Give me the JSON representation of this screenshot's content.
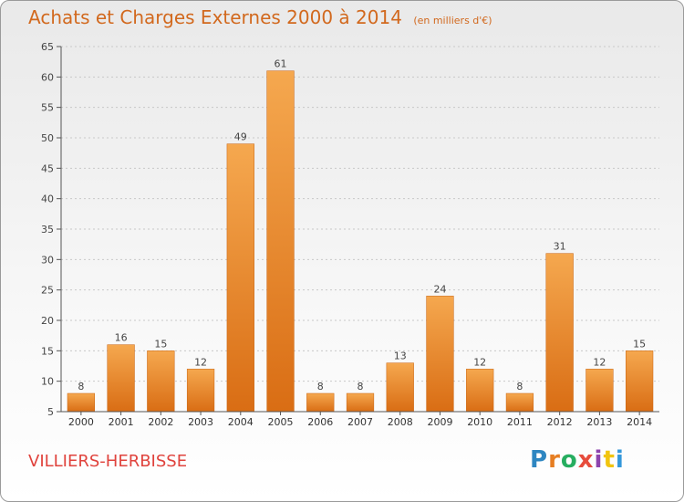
{
  "header": {
    "title": "Achats et Charges Externes 2000 à 2014",
    "unit": "(en milliers d'€)"
  },
  "footer": {
    "commune": "VILLIERS-HERBISSE",
    "logo_text": "Proxiti",
    "logo_colors": [
      "#2e86c1",
      "#e67e22",
      "#27ae60",
      "#e74c3c",
      "#8e44ad",
      "#f1c40f",
      "#3498db"
    ]
  },
  "chart_data": {
    "type": "bar",
    "title": "Achats et Charges Externes 2000 à 2014",
    "subtitle": "(en milliers d'€)",
    "categories": [
      "2000",
      "2001",
      "2002",
      "2003",
      "2004",
      "2005",
      "2006",
      "2007",
      "2008",
      "2009",
      "2010",
      "2011",
      "2012",
      "2013",
      "2014"
    ],
    "values": [
      8,
      16,
      15,
      12,
      49,
      61,
      8,
      8,
      13,
      24,
      12,
      8,
      31,
      12,
      15
    ],
    "ylim": [
      5,
      65
    ],
    "yticks": [
      5,
      10,
      15,
      20,
      25,
      30,
      35,
      40,
      45,
      50,
      55,
      60,
      65
    ],
    "grid": true,
    "bar_color": "#e8822a",
    "xlabel": "",
    "ylabel": ""
  }
}
